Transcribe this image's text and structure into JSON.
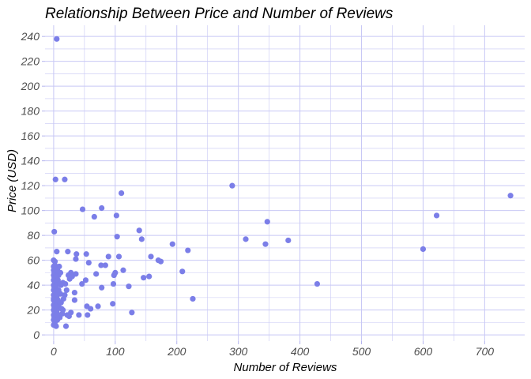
{
  "chart_data": {
    "type": "scatter",
    "title": "Relationship Between Price and Number of Reviews",
    "xlabel": "Number of Reviews",
    "ylabel": "Price (USD)",
    "xlim": [
      -14,
      765
    ],
    "ylim": [
      -5,
      249
    ],
    "x_ticks": [
      0,
      100,
      200,
      300,
      400,
      500,
      600,
      700
    ],
    "y_ticks": [
      0,
      20,
      40,
      60,
      80,
      100,
      120,
      140,
      160,
      180,
      200,
      220,
      240
    ],
    "grid": true,
    "legend": "none",
    "colors": {
      "point": "#7b7ee8",
      "grid": "#c8c8f5",
      "tick": "#b5b5ee"
    },
    "points": [
      {
        "x": 5,
        "y": 238
      },
      {
        "x": 3,
        "y": 125
      },
      {
        "x": 18,
        "y": 125
      },
      {
        "x": 110,
        "y": 114
      },
      {
        "x": 290,
        "y": 120
      },
      {
        "x": 742,
        "y": 112
      },
      {
        "x": 47,
        "y": 101
      },
      {
        "x": 78,
        "y": 102
      },
      {
        "x": 102,
        "y": 96
      },
      {
        "x": 66,
        "y": 95
      },
      {
        "x": 622,
        "y": 96
      },
      {
        "x": 347,
        "y": 91
      },
      {
        "x": 1,
        "y": 83
      },
      {
        "x": 139,
        "y": 84
      },
      {
        "x": 103,
        "y": 79
      },
      {
        "x": 143,
        "y": 77
      },
      {
        "x": 312,
        "y": 77
      },
      {
        "x": 381,
        "y": 76
      },
      {
        "x": 344,
        "y": 73
      },
      {
        "x": 193,
        "y": 73
      },
      {
        "x": 600,
        "y": 69
      },
      {
        "x": 218,
        "y": 68
      },
      {
        "x": 5,
        "y": 67
      },
      {
        "x": 23,
        "y": 67
      },
      {
        "x": 37,
        "y": 65
      },
      {
        "x": 53,
        "y": 65
      },
      {
        "x": 89,
        "y": 63
      },
      {
        "x": 106,
        "y": 63
      },
      {
        "x": 158,
        "y": 63
      },
      {
        "x": 36,
        "y": 61
      },
      {
        "x": 170,
        "y": 60
      },
      {
        "x": 174,
        "y": 59
      },
      {
        "x": 2,
        "y": 59
      },
      {
        "x": 57,
        "y": 58
      },
      {
        "x": 84,
        "y": 56
      },
      {
        "x": 77,
        "y": 56
      },
      {
        "x": 9,
        "y": 55
      },
      {
        "x": 113,
        "y": 52
      },
      {
        "x": 209,
        "y": 51
      },
      {
        "x": 28,
        "y": 50
      },
      {
        "x": 100,
        "y": 50
      },
      {
        "x": 36,
        "y": 49
      },
      {
        "x": 69,
        "y": 49
      },
      {
        "x": 98,
        "y": 48
      },
      {
        "x": 155,
        "y": 47
      },
      {
        "x": 146,
        "y": 46
      },
      {
        "x": 26,
        "y": 45
      },
      {
        "x": 52,
        "y": 44
      },
      {
        "x": 46,
        "y": 41
      },
      {
        "x": 97,
        "y": 41
      },
      {
        "x": 428,
        "y": 41
      },
      {
        "x": 122,
        "y": 39
      },
      {
        "x": 78,
        "y": 38
      },
      {
        "x": 21,
        "y": 36
      },
      {
        "x": 34,
        "y": 34
      },
      {
        "x": 18,
        "y": 32
      },
      {
        "x": 226,
        "y": 29
      },
      {
        "x": 34,
        "y": 28
      },
      {
        "x": 96,
        "y": 25
      },
      {
        "x": 5,
        "y": 25
      },
      {
        "x": 54,
        "y": 23
      },
      {
        "x": 72,
        "y": 23
      },
      {
        "x": 60,
        "y": 21
      },
      {
        "x": 15,
        "y": 20
      },
      {
        "x": 127,
        "y": 18
      },
      {
        "x": 28,
        "y": 18
      },
      {
        "x": 41,
        "y": 16
      },
      {
        "x": 55,
        "y": 16
      },
      {
        "x": 25,
        "y": 15
      },
      {
        "x": 10,
        "y": 14
      },
      {
        "x": 20,
        "y": 7
      },
      {
        "x": 4,
        "y": 7
      },
      {
        "x": 0,
        "y": 60
      },
      {
        "x": 0,
        "y": 55
      },
      {
        "x": 0,
        "y": 52
      },
      {
        "x": 1,
        "y": 50
      },
      {
        "x": 0,
        "y": 48
      },
      {
        "x": 1,
        "y": 46
      },
      {
        "x": 0,
        "y": 44
      },
      {
        "x": 2,
        "y": 42
      },
      {
        "x": 0,
        "y": 40
      },
      {
        "x": 1,
        "y": 38
      },
      {
        "x": 0,
        "y": 36
      },
      {
        "x": 2,
        "y": 34
      },
      {
        "x": 0,
        "y": 32
      },
      {
        "x": 1,
        "y": 30
      },
      {
        "x": 0,
        "y": 28
      },
      {
        "x": 2,
        "y": 26
      },
      {
        "x": 0,
        "y": 24
      },
      {
        "x": 1,
        "y": 22
      },
      {
        "x": 0,
        "y": 20
      },
      {
        "x": 2,
        "y": 18
      },
      {
        "x": 0,
        "y": 16
      },
      {
        "x": 1,
        "y": 14
      },
      {
        "x": 0,
        "y": 12
      },
      {
        "x": 2,
        "y": 10
      },
      {
        "x": 0,
        "y": 8
      },
      {
        "x": 3,
        "y": 53
      },
      {
        "x": 4,
        "y": 47
      },
      {
        "x": 3,
        "y": 43
      },
      {
        "x": 4,
        "y": 39
      },
      {
        "x": 3,
        "y": 35
      },
      {
        "x": 5,
        "y": 31
      },
      {
        "x": 4,
        "y": 27
      },
      {
        "x": 3,
        "y": 23
      },
      {
        "x": 5,
        "y": 19
      },
      {
        "x": 4,
        "y": 15
      },
      {
        "x": 6,
        "y": 12
      },
      {
        "x": 7,
        "y": 44
      },
      {
        "x": 8,
        "y": 36
      },
      {
        "x": 7,
        "y": 28
      },
      {
        "x": 9,
        "y": 22
      },
      {
        "x": 10,
        "y": 41
      },
      {
        "x": 11,
        "y": 33
      },
      {
        "x": 12,
        "y": 26
      },
      {
        "x": 14,
        "y": 17
      },
      {
        "x": 6,
        "y": 52
      },
      {
        "x": 8,
        "y": 48
      },
      {
        "x": 12,
        "y": 40
      },
      {
        "x": 15,
        "y": 42
      },
      {
        "x": 9,
        "y": 16
      },
      {
        "x": 13,
        "y": 21
      },
      {
        "x": 16,
        "y": 29
      },
      {
        "x": 19,
        "y": 41
      },
      {
        "x": 24,
        "y": 48
      },
      {
        "x": 30,
        "y": 47
      },
      {
        "x": 22,
        "y": 16
      },
      {
        "x": 6,
        "y": 34
      },
      {
        "x": 11,
        "y": 50
      },
      {
        "x": 2,
        "y": 56
      },
      {
        "x": 1,
        "y": 19
      },
      {
        "x": 0,
        "y": 29
      }
    ]
  }
}
